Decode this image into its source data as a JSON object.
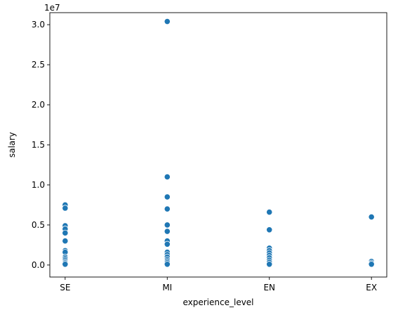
{
  "chart_data": {
    "type": "scatter",
    "xlabel": "experience_level",
    "ylabel": "salary",
    "offset_text": "1e7",
    "categories": [
      "SE",
      "MI",
      "EN",
      "EX"
    ],
    "ylim": [
      -1.5,
      31.5
    ],
    "y_scale_multiplier": 10000000,
    "yticks": [
      0,
      5,
      10,
      15,
      20,
      25,
      30
    ],
    "ytick_labels": [
      "0.0",
      "0.5",
      "1.0",
      "1.5",
      "2.0",
      "2.5",
      "3.0"
    ],
    "marker_color": "#1f77b4",
    "grid": false,
    "points": [
      {
        "x": "SE",
        "y": 7.5
      },
      {
        "x": "SE",
        "y": 7.1
      },
      {
        "x": "SE",
        "y": 4.9
      },
      {
        "x": "SE",
        "y": 4.5
      },
      {
        "x": "SE",
        "y": 4.0
      },
      {
        "x": "SE",
        "y": 3.0
      },
      {
        "x": "SE",
        "y": 1.8
      },
      {
        "x": "SE",
        "y": 1.6
      },
      {
        "x": "SE",
        "y": 1.0
      },
      {
        "x": "SE",
        "y": 0.8
      },
      {
        "x": "SE",
        "y": 0.6
      },
      {
        "x": "SE",
        "y": 0.4
      },
      {
        "x": "SE",
        "y": 0.25
      },
      {
        "x": "SE",
        "y": 0.1
      },
      {
        "x": "MI",
        "y": 30.4
      },
      {
        "x": "MI",
        "y": 11.0
      },
      {
        "x": "MI",
        "y": 8.5
      },
      {
        "x": "MI",
        "y": 7.0
      },
      {
        "x": "MI",
        "y": 5.0
      },
      {
        "x": "MI",
        "y": 4.2
      },
      {
        "x": "MI",
        "y": 3.0
      },
      {
        "x": "MI",
        "y": 2.6
      },
      {
        "x": "MI",
        "y": 1.6
      },
      {
        "x": "MI",
        "y": 1.3
      },
      {
        "x": "MI",
        "y": 1.0
      },
      {
        "x": "MI",
        "y": 0.7
      },
      {
        "x": "MI",
        "y": 0.5
      },
      {
        "x": "MI",
        "y": 0.3
      },
      {
        "x": "MI",
        "y": 0.1
      },
      {
        "x": "EN",
        "y": 6.6
      },
      {
        "x": "EN",
        "y": 4.4
      },
      {
        "x": "EN",
        "y": 2.1
      },
      {
        "x": "EN",
        "y": 1.8
      },
      {
        "x": "EN",
        "y": 1.5
      },
      {
        "x": "EN",
        "y": 1.2
      },
      {
        "x": "EN",
        "y": 0.9
      },
      {
        "x": "EN",
        "y": 0.6
      },
      {
        "x": "EN",
        "y": 0.35
      },
      {
        "x": "EN",
        "y": 0.1
      },
      {
        "x": "EX",
        "y": 6.0
      },
      {
        "x": "EX",
        "y": 0.45
      },
      {
        "x": "EX",
        "y": 0.25
      },
      {
        "x": "EX",
        "y": 0.1
      }
    ]
  }
}
